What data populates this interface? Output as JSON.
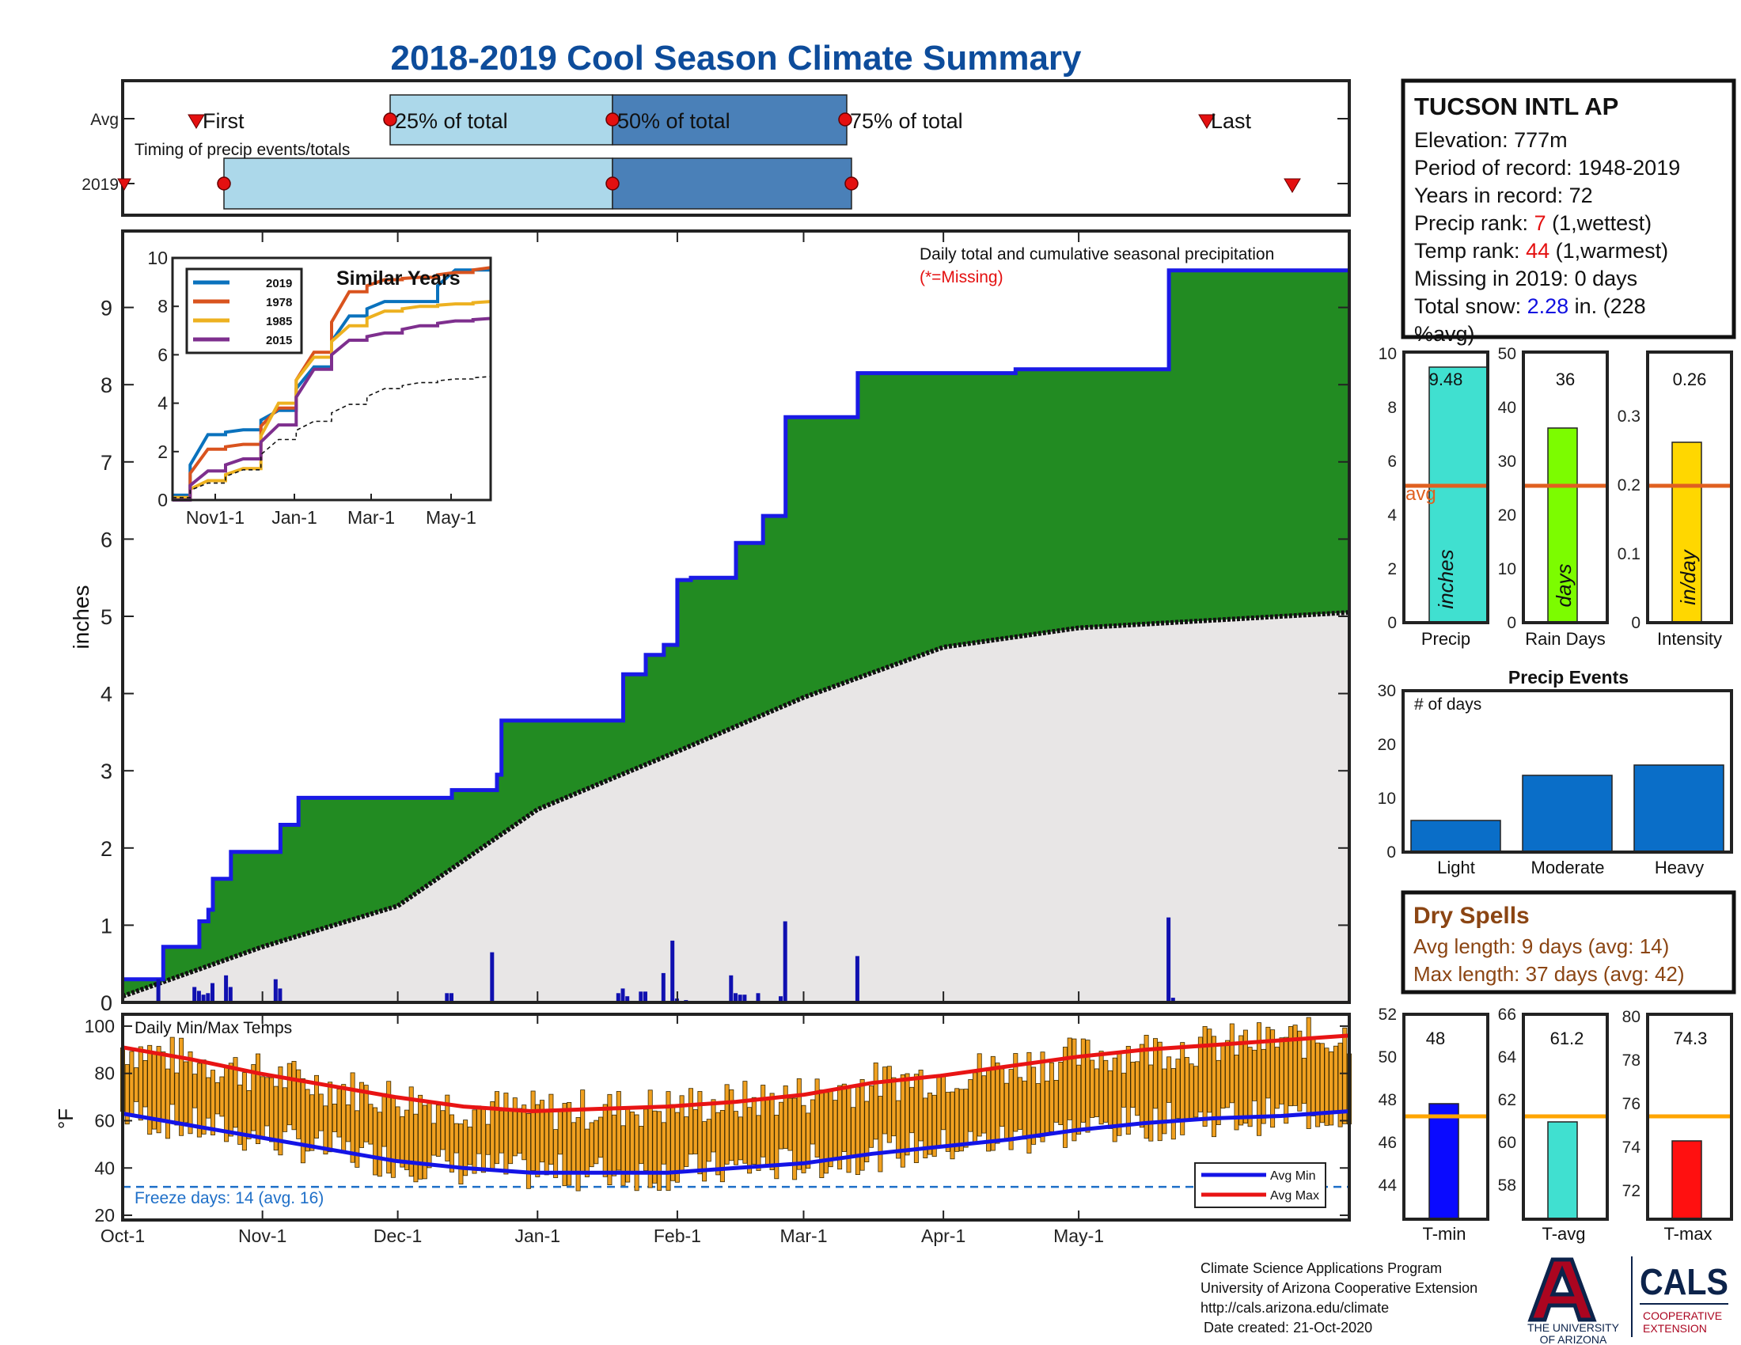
{
  "title": "2018-2019 Cool Season Climate Summary",
  "colors": {
    "title": "#0d4c9b",
    "precip_fill": "#228b22",
    "normal_fill": "#e8e6e6",
    "cumulative_line": "#1a1ae6",
    "daily_bar": "#1010b0",
    "timing_light": "#acd8ea",
    "timing_dark": "#4a80b8",
    "marker": "#e41010",
    "avg_line": "#e06020",
    "temp_bar": "#f0a020",
    "avg_min": "#1414e6",
    "avg_max": "#e81414",
    "freeze": "#1e6fc8",
    "precip_bar": "#40e0d0",
    "raindays_bar": "#7cfc00",
    "intensity_bar": "#ffd700",
    "events_bar": "#0a6ec8",
    "tmin_bar": "#0a0aff",
    "tavg_bar": "#40e0d0",
    "tmax_bar": "#ff1010",
    "dry_text": "#8b4513",
    "orange_line": "#ffa500"
  },
  "timing": {
    "title": "Timing of precip events/totals",
    "rows": [
      "Avg",
      "2019"
    ],
    "labels": {
      "first": "First",
      "p25": "25% of total",
      "p50": "50% of total",
      "p75": "75% of total",
      "last": "Last"
    }
  },
  "station": {
    "name": "TUCSON INTL AP",
    "elevation_label": "Elevation: 777m",
    "period_label": "Period of record: 1948-2019",
    "years_label": "Years in record: 72",
    "precip_rank_label": "Precip rank: ",
    "precip_rank": "7",
    "precip_rank_note": " (1,wettest)",
    "temp_rank_label": "Temp rank: ",
    "temp_rank": "44",
    "temp_rank_note": " (1,warmest)",
    "missing_label": "Missing in 2019: 0 days",
    "snow_label": "Total snow: ",
    "snow_value": "2.28",
    "snow_note": " in. (228",
    "snow_note2": "%avg)"
  },
  "main": {
    "ylabel": "inches",
    "annotation": "Daily total and cumulative seasonal precipitation",
    "missing_note": "(*=Missing)",
    "yticks": [
      "0",
      "1",
      "2",
      "3",
      "4",
      "5",
      "6",
      "7",
      "8",
      "9"
    ],
    "xticks": [
      "Oct-1",
      "Nov-1",
      "Dec-1",
      "Jan-1",
      "Feb-1",
      "Mar-1",
      "Apr-1",
      "May-1"
    ]
  },
  "inset": {
    "title": "Similar Years",
    "xticks": [
      "Nov1-1",
      "Jan-1",
      "Mar-1",
      "May-1"
    ],
    "yticks": [
      "0",
      "2",
      "4",
      "6",
      "8",
      "10"
    ],
    "legend": [
      "2019",
      "1978",
      "1985",
      "2015"
    ]
  },
  "stats": {
    "precip": {
      "label": "Precip",
      "value": "9.48",
      "unit": "inches",
      "avg_label": "avg",
      "yticks": [
        "0",
        "2",
        "4",
        "6",
        "8",
        "10"
      ]
    },
    "raindays": {
      "label": "Rain Days",
      "value": "36",
      "unit": "days",
      "yticks": [
        "0",
        "10",
        "20",
        "30",
        "40",
        "50"
      ]
    },
    "intensity": {
      "label": "Intensity",
      "value": "0.26",
      "unit": "in/day",
      "yticks": [
        "0",
        "0.1",
        "0.2",
        "0.3"
      ]
    }
  },
  "events": {
    "title": "Precip Events",
    "subtitle": "# of days",
    "categories": [
      "Light",
      "Moderate",
      "Heavy"
    ],
    "yticks": [
      "0",
      "10",
      "20",
      "30"
    ]
  },
  "dry_spells": {
    "title": "Dry Spells",
    "avg_length": "Avg length: 9 days (avg: 14)",
    "max_length": "Max length: 37 days (avg: 42)"
  },
  "temps": {
    "title": "Daily Min/Max Temps",
    "ylabel": "°F",
    "yticks": [
      "20",
      "40",
      "60",
      "80",
      "100"
    ],
    "freeze": "Freeze days: 14 (avg. 16)",
    "legend": [
      "Avg Min",
      "Avg Max"
    ]
  },
  "temp_stats": {
    "tmin": {
      "label": "T-min",
      "value": "48",
      "yticks": [
        "44",
        "46",
        "48",
        "50",
        "52"
      ]
    },
    "tavg": {
      "label": "T-avg",
      "value": "61.2",
      "yticks": [
        "58",
        "60",
        "62",
        "64",
        "66"
      ]
    },
    "tmax": {
      "label": "T-max",
      "value": "74.3",
      "yticks": [
        "72",
        "74",
        "76",
        "78",
        "80"
      ]
    }
  },
  "footer": {
    "line1": "Climate Science Applications Program",
    "line2": "University of Arizona Cooperative Extension",
    "line3": "http://cals.arizona.edu/climate",
    "line4": "Date created: 21-Oct-2020",
    "ua_line1": "THE UNIVERSITY",
    "ua_line2": "OF ARIZONA",
    "cals": "CALS",
    "coop1": "COOPERATIVE",
    "coop2": "EXTENSION"
  },
  "chart_data": [
    {
      "type": "line",
      "title": "Daily total and cumulative seasonal precipitation",
      "ylabel": "inches",
      "ylim": [
        0,
        9.8
      ],
      "x_range": [
        "2018-10-01",
        "2019-06-30"
      ],
      "series": [
        {
          "name": "cumulative",
          "x": [
            "2018-10-01",
            "2018-10-09",
            "2018-10-10",
            "2018-10-17",
            "2018-10-18",
            "2018-10-20",
            "2018-10-21",
            "2018-10-24",
            "2018-10-25",
            "2018-11-04",
            "2018-11-05",
            "2018-11-08",
            "2018-11-09",
            "2018-12-12",
            "2018-12-13",
            "2018-12-22",
            "2018-12-23",
            "2018-12-24",
            "2019-01-19",
            "2019-01-20",
            "2019-01-24",
            "2019-01-25",
            "2019-01-28",
            "2019-01-29",
            "2019-01-31",
            "2019-02-01",
            "2019-02-03",
            "2019-02-04",
            "2019-02-13",
            "2019-02-14",
            "2019-02-19",
            "2019-02-20",
            "2019-02-24",
            "2019-02-25",
            "2019-03-12",
            "2019-03-13",
            "2019-04-16",
            "2019-04-17",
            "2019-04-18",
            "2019-05-20",
            "2019-05-21",
            "2019-06-30"
          ],
          "y": [
            0.3,
            0.3,
            0.72,
            0.72,
            1.05,
            1.2,
            1.6,
            1.6,
            1.95,
            1.95,
            2.3,
            2.3,
            2.65,
            2.65,
            2.75,
            2.75,
            2.95,
            3.65,
            3.65,
            4.25,
            4.25,
            4.5,
            4.5,
            4.63,
            4.63,
            5.47,
            5.47,
            5.5,
            5.5,
            5.95,
            5.95,
            6.3,
            6.3,
            7.58,
            7.58,
            8.15,
            8.15,
            8.2,
            8.2,
            8.2,
            9.48,
            9.48
          ]
        },
        {
          "name": "average",
          "x": [
            "2018-10-01",
            "2018-11-01",
            "2018-12-01",
            "2019-01-01",
            "2019-02-01",
            "2019-03-01",
            "2019-04-01",
            "2019-05-01",
            "2019-06-30"
          ],
          "y": [
            0.08,
            0.72,
            1.25,
            2.5,
            3.25,
            3.95,
            4.6,
            4.85,
            5.05
          ]
        }
      ],
      "daily": {
        "x": [
          "2018-10-09",
          "2018-10-17",
          "2018-10-18",
          "2018-10-19",
          "2018-10-20",
          "2018-10-21",
          "2018-10-24",
          "2018-10-25",
          "2018-11-04",
          "2018-11-05",
          "2018-12-12",
          "2018-12-13",
          "2018-12-22",
          "2019-01-19",
          "2019-01-20",
          "2019-01-21",
          "2019-01-24",
          "2019-01-25",
          "2019-01-29",
          "2019-01-31",
          "2019-02-01",
          "2019-02-03",
          "2019-02-13",
          "2019-02-14",
          "2019-02-15",
          "2019-02-16",
          "2019-02-19",
          "2019-02-24",
          "2019-02-25",
          "2019-03-13",
          "2019-05-21",
          "2019-05-22"
        ],
        "y": [
          0.3,
          0.2,
          0.15,
          0.1,
          0.12,
          0.25,
          0.35,
          0.2,
          0.3,
          0.18,
          0.12,
          0.12,
          0.65,
          0.12,
          0.18,
          0.08,
          0.14,
          0.14,
          0.38,
          0.8,
          0.05,
          0.03,
          0.35,
          0.12,
          0.1,
          0.1,
          0.12,
          0.08,
          1.05,
          0.6,
          1.1,
          0.06
        ]
      }
    },
    {
      "type": "line",
      "title": "Similar Years",
      "ylim": [
        0,
        10
      ],
      "x": [
        "Oct-1",
        "Nov-1",
        "Dec-1",
        "Jan-1",
        "Feb-1",
        "Mar-1",
        "Apr-1",
        "May-1",
        "Jun-1",
        "Jun-30"
      ],
      "series": [
        {
          "name": "2019",
          "values": [
            0.2,
            2.7,
            2.9,
            3.7,
            5.5,
            7.6,
            8.2,
            8.2,
            9.5,
            9.5
          ]
        },
        {
          "name": "1978",
          "values": [
            0.1,
            2.1,
            2.3,
            3.8,
            6.1,
            8.6,
            9.1,
            9.2,
            9.4,
            9.6
          ]
        },
        {
          "name": "1985",
          "values": [
            0.1,
            0.8,
            1.3,
            4.0,
            5.9,
            7.2,
            7.8,
            8.0,
            8.1,
            8.2
          ]
        },
        {
          "name": "2015",
          "values": [
            0.0,
            1.2,
            1.7,
            3.1,
            5.4,
            6.6,
            6.9,
            7.2,
            7.4,
            7.5
          ]
        },
        {
          "name": "average",
          "values": [
            0.1,
            0.7,
            1.25,
            2.5,
            3.25,
            3.95,
            4.6,
            4.85,
            5.0,
            5.1
          ]
        }
      ]
    },
    {
      "type": "bar",
      "categories": [
        "Precip",
        "Rain Days",
        "Intensity"
      ],
      "series": [
        {
          "values": [
            9.48,
            36,
            0.26
          ]
        },
        {
          "name": "avg",
          "values": [
            5.1,
            25.5,
            0.2
          ]
        }
      ]
    },
    {
      "type": "bar",
      "title": "Precip Events",
      "categories": [
        "Light",
        "Moderate",
        "Heavy"
      ],
      "values": [
        6,
        14,
        16
      ],
      "ylim": [
        0,
        30
      ]
    },
    {
      "type": "area",
      "title": "Daily Min/Max Temps",
      "ylabel": "°F",
      "ylim": [
        18,
        105
      ],
      "freeze_line": 32,
      "x": [
        "Oct-1",
        "Oct-15",
        "Nov-1",
        "Nov-15",
        "Dec-1",
        "Dec-15",
        "Jan-1",
        "Jan-15",
        "Feb-1",
        "Feb-15",
        "Mar-1",
        "Mar-15",
        "Apr-1",
        "Apr-15",
        "May-1",
        "May-15",
        "Jun-1",
        "Jun-15",
        "Jun-30"
      ],
      "series": [
        {
          "name": "Avg Max",
          "values": [
            91,
            86,
            80,
            75,
            70,
            66,
            64,
            65,
            66,
            68,
            71,
            76,
            79,
            83,
            87,
            90,
            92,
            94,
            96
          ]
        },
        {
          "name": "Avg Min",
          "values": [
            63,
            58,
            53,
            48,
            43,
            40,
            38,
            38,
            38,
            40,
            42,
            46,
            49,
            52,
            56,
            59,
            61,
            62,
            64
          ]
        }
      ]
    },
    {
      "type": "bar",
      "categories": [
        "T-min",
        "T-avg",
        "T-max"
      ],
      "series": [
        {
          "values": [
            48,
            61.2,
            74.3
          ]
        },
        {
          "name": "avg",
          "values": [
            47.4,
            61.5,
            75.7
          ]
        }
      ]
    }
  ]
}
